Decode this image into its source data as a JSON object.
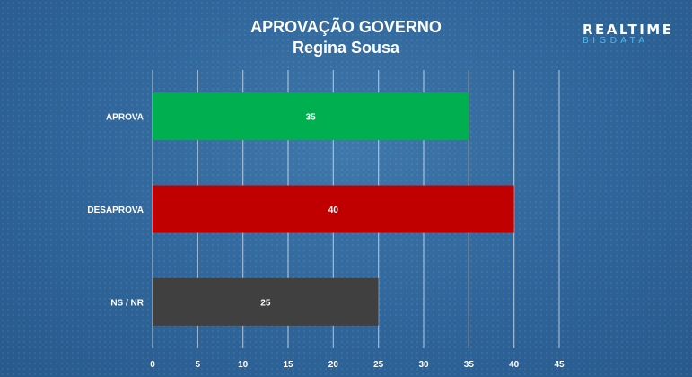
{
  "chart_data": {
    "type": "bar",
    "orientation": "horizontal",
    "title": "APROVAÇÃO GOVERNO",
    "subtitle": "Regina Sousa",
    "categories": [
      "APROVA",
      "DESAPROVA",
      "NS / NR"
    ],
    "values": [
      35,
      40,
      25
    ],
    "bar_colors": [
      "#00b050",
      "#c00000",
      "#404040"
    ],
    "xlim": [
      0,
      45
    ],
    "x_ticks": [
      "0",
      "5",
      "10",
      "15",
      "20",
      "25",
      "30",
      "35",
      "40",
      "45"
    ],
    "grid": true,
    "legend": "none"
  },
  "logo": {
    "top": "REALTIME",
    "bottom": "BIGDATA"
  }
}
